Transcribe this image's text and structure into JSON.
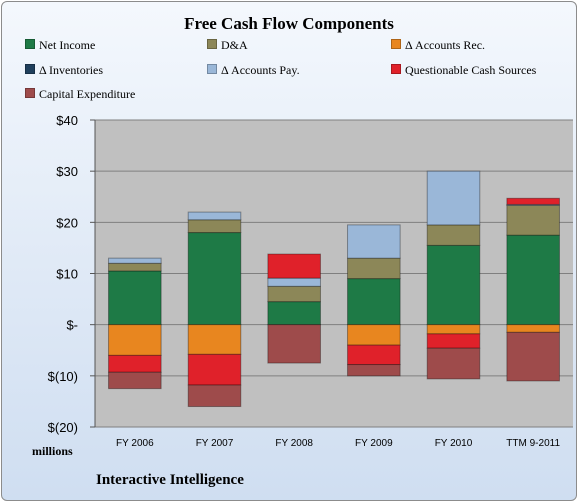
{
  "chart_data": {
    "type": "bar",
    "stacked": true,
    "title": "Free Cash Flow Components",
    "units_label": "millions",
    "footer": "Interactive Intelligence",
    "categories": [
      "FY 2006",
      "FY 2007",
      "FY 2008",
      "FY 2009",
      "FY 2010",
      "TTM 9-2011"
    ],
    "ylim": [
      -20,
      40
    ],
    "yticks": [
      {
        "value": 40,
        "label": "$40"
      },
      {
        "value": 30,
        "label": "$30"
      },
      {
        "value": 20,
        "label": "$20"
      },
      {
        "value": 10,
        "label": "$10"
      },
      {
        "value": 0,
        "label": "$-"
      },
      {
        "value": -10,
        "label": "$(10)"
      },
      {
        "value": -20,
        "label": "$(20)"
      }
    ],
    "grid": true,
    "legend_position": "top",
    "series": [
      {
        "name": "Net Income",
        "color": "#1e7a46",
        "values": [
          10.5,
          18.0,
          4.5,
          9.0,
          15.5,
          17.5
        ]
      },
      {
        "name": "D&A",
        "color": "#8c8758",
        "values": [
          1.5,
          2.5,
          3.0,
          4.0,
          4.0,
          5.8
        ]
      },
      {
        "name": "Δ Accounts Rec.",
        "color": "#e8861f",
        "values": [
          -6.0,
          -5.8,
          0.0,
          -4.0,
          -1.8,
          -1.5
        ]
      },
      {
        "name": "Δ Inventories",
        "color": "#1f3f5c",
        "values": [
          0.0,
          0.0,
          0.0,
          0.0,
          0.0,
          0.0
        ]
      },
      {
        "name": "Δ Accounts Pay.",
        "color": "#9ab7d8",
        "values": [
          1.0,
          1.5,
          1.6,
          6.5,
          10.5,
          0.2
        ]
      },
      {
        "name": "Questionable Cash Sources",
        "color": "#e0212a",
        "values": [
          -3.3,
          -6.0,
          4.7,
          -3.8,
          -2.8,
          1.2
        ]
      },
      {
        "name": "Capital Expenditure",
        "color": "#9e4b4b",
        "values": [
          -3.2,
          -4.2,
          -7.5,
          -2.2,
          -6.0,
          -9.5
        ]
      }
    ]
  }
}
